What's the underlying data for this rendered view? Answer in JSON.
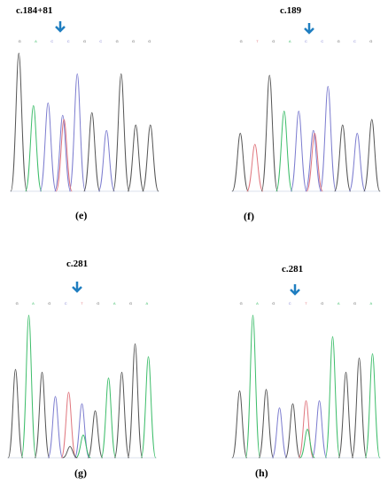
{
  "colors": {
    "A": "#3dbd6a",
    "C": "#7c7ccf",
    "G": "#555555",
    "T": "#e0777f",
    "arrow": "#1f7ec0"
  },
  "panels": [
    {
      "id": "e",
      "title": "c.184+81",
      "label": "(e)",
      "bases": [
        "G",
        "A",
        "C",
        "C",
        "G",
        "C",
        "G",
        "G",
        "G"
      ],
      "mutation_index": 3,
      "peaks": [
        [
          {
            "base": "G",
            "h": 1.0
          },
          {
            "base": "A",
            "h": 0.62
          },
          {
            "base": "C",
            "h": 0.64
          },
          {
            "base": "C",
            "h": 0.55
          },
          {
            "base": "C",
            "h": 0.85
          },
          {
            "base": "G",
            "h": 0.57
          },
          {
            "base": "C",
            "h": 0.44
          },
          {
            "base": "G",
            "h": 0.85
          },
          {
            "base": "G",
            "h": 0.48
          },
          {
            "base": "G",
            "h": 0.48
          }
        ],
        [
          {
            "pos": 3,
            "base": "T",
            "h": 0.52
          }
        ]
      ]
    },
    {
      "id": "f",
      "title": "c.189",
      "label": "(f)",
      "bases": [
        "G",
        "T",
        "G",
        "A",
        "C",
        "C",
        "G",
        "C",
        "G"
      ],
      "mutation_index": 5,
      "peaks": [
        [
          {
            "base": "G",
            "h": 0.42
          },
          {
            "base": "T",
            "h": 0.34
          },
          {
            "base": "G",
            "h": 0.84
          },
          {
            "base": "A",
            "h": 0.58
          },
          {
            "base": "C",
            "h": 0.58
          },
          {
            "base": "C",
            "h": 0.44
          },
          {
            "base": "C",
            "h": 0.76
          },
          {
            "base": "G",
            "h": 0.48
          },
          {
            "base": "C",
            "h": 0.42
          },
          {
            "base": "G",
            "h": 0.52
          }
        ],
        [
          {
            "pos": 5,
            "base": "T",
            "h": 0.42
          }
        ]
      ]
    },
    {
      "id": "g",
      "title": "c.281",
      "label": "(g)",
      "bases": [
        "G",
        "A",
        "G",
        "C",
        "T",
        "G",
        "A",
        "G",
        "A"
      ],
      "mutation_index": 5,
      "peaks": [
        [
          {
            "base": "G",
            "h": 0.62
          },
          {
            "base": "A",
            "h": 1.0
          },
          {
            "base": "G",
            "h": 0.6
          },
          {
            "base": "C",
            "h": 0.43
          },
          {
            "base": "T",
            "h": 0.46
          },
          {
            "base": "C",
            "h": 0.38
          },
          {
            "base": "G",
            "h": 0.33
          },
          {
            "base": "A",
            "h": 0.56
          },
          {
            "base": "G",
            "h": 0.6
          },
          {
            "base": "G",
            "h": 0.8
          },
          {
            "base": "A",
            "h": 0.71
          }
        ],
        [
          {
            "pos": 5,
            "base": "A",
            "h": 0.16
          },
          {
            "pos": 4,
            "base": "G",
            "h": 0.08
          }
        ]
      ]
    },
    {
      "id": "h",
      "title": "c.281",
      "label": "(h)",
      "bases": [
        "G",
        "A",
        "G",
        "C",
        "T",
        "G",
        "A",
        "G",
        "A"
      ],
      "mutation_index": 5,
      "peaks": [
        [
          {
            "base": "G",
            "h": 0.47
          },
          {
            "base": "A",
            "h": 1.0
          },
          {
            "base": "G",
            "h": 0.48
          },
          {
            "base": "C",
            "h": 0.35
          },
          {
            "base": "G",
            "h": 0.38
          },
          {
            "base": "T",
            "h": 0.4
          },
          {
            "base": "C",
            "h": 0.4
          },
          {
            "base": "A",
            "h": 0.85
          },
          {
            "base": "G",
            "h": 0.6
          },
          {
            "base": "G",
            "h": 0.7
          },
          {
            "base": "A",
            "h": 0.73
          }
        ],
        [
          {
            "pos": 5,
            "base": "A",
            "h": 0.2
          }
        ]
      ]
    }
  ]
}
